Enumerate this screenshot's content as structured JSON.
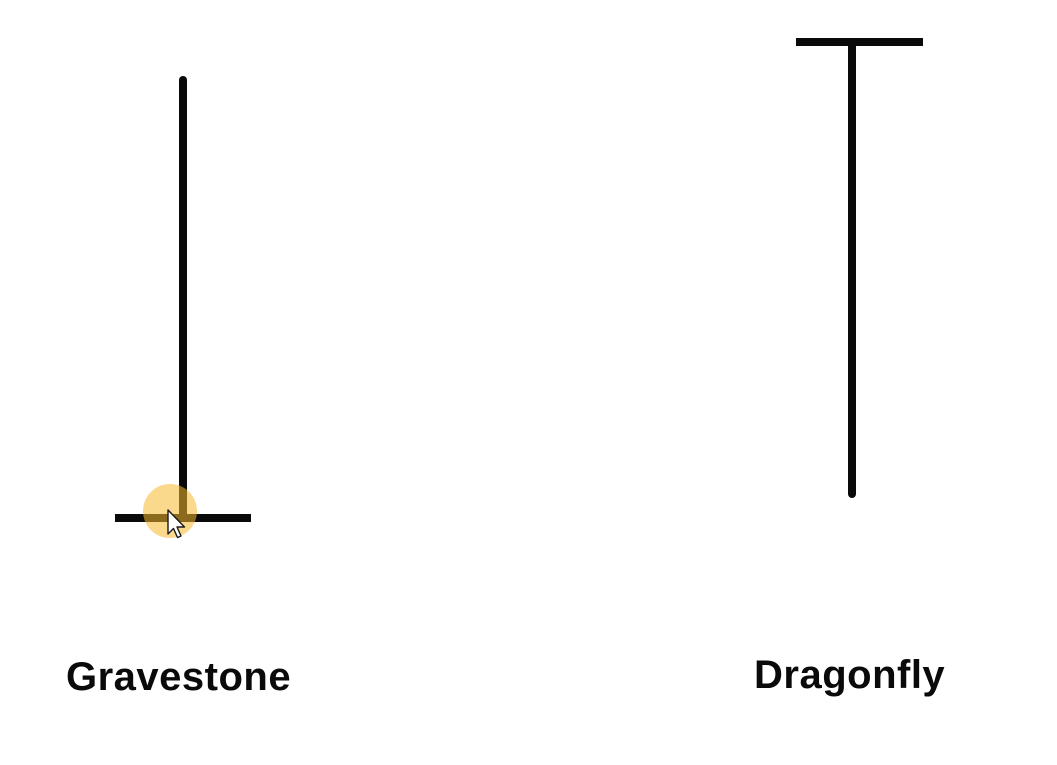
{
  "candles": [
    {
      "name": "gravestone",
      "label": "Gravestone",
      "body_position": "bottom"
    },
    {
      "name": "dragonfly",
      "label": "Dragonfly",
      "body_position": "top"
    }
  ],
  "colors": {
    "background": "#ffffff",
    "stroke": "#0a0a0a",
    "cursor_highlight": "#f5b82e"
  },
  "cursor": {
    "icon": "mouse-pointer-icon",
    "highlight": "cursor-highlight-circle"
  }
}
